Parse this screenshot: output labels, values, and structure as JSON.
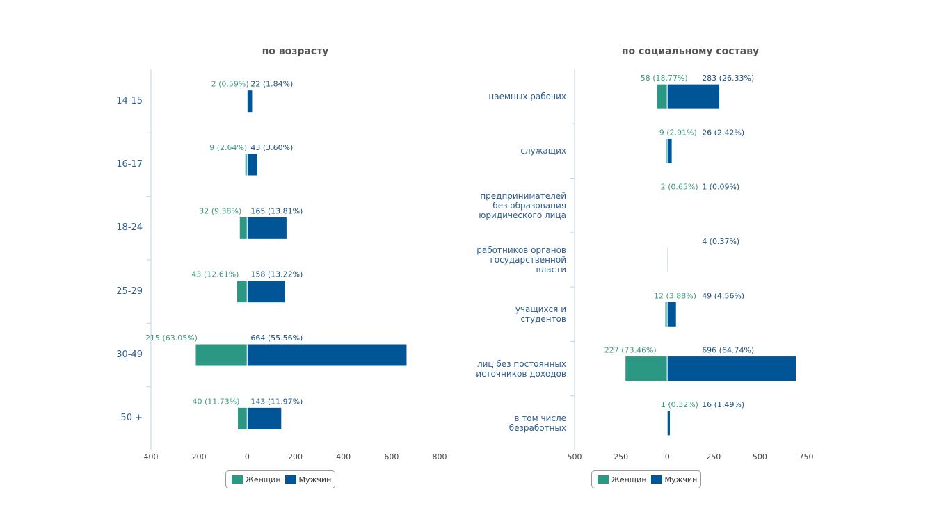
{
  "chart_data": [
    {
      "type": "butterfly-bar",
      "title": "по возрасту",
      "categories": [
        "14-15",
        "16-17",
        "18-24",
        "25-29",
        "30-49",
        "50 +"
      ],
      "series": [
        {
          "name": "Женщин",
          "color": "#2a9882",
          "values": [
            -2,
            -9,
            -32,
            -43,
            -215,
            -40
          ],
          "value_labels": [
            "2 (0.59%)",
            "9 (2.64%)",
            "32 (9.38%)",
            "43 (12.61%)",
            "215 (63.05%)",
            "40 (11.73%)"
          ]
        },
        {
          "name": "Мужчин",
          "color": "#005596",
          "values": [
            22,
            43,
            165,
            158,
            664,
            143
          ],
          "value_labels": [
            "22 (1.84%)",
            "43 (3.60%)",
            "165 (13.81%)",
            "158 (13.22%)",
            "664 (55.56%)",
            "143 (11.97%)"
          ]
        }
      ],
      "xlim": [
        -400,
        800
      ],
      "xticks": [
        {
          "value": -400,
          "label": "400"
        },
        {
          "value": -200,
          "label": "200"
        },
        0,
        200,
        400,
        600,
        800
      ],
      "legend": "bottom"
    },
    {
      "type": "butterfly-bar",
      "title": "по социальному составу",
      "categories": [
        "наемных рабочих",
        "служащих",
        "предпринимателей без образования юридического лица",
        "работников органов государственной власти",
        "учащихся и студентов",
        "лиц без постоянных источников доходов",
        "в том числе безработных"
      ],
      "series": [
        {
          "name": "Женщин",
          "color": "#2a9882",
          "values": [
            -58,
            -9,
            -2,
            null,
            -12,
            -227,
            -1
          ],
          "value_labels": [
            "58 (18.77%)",
            "9 (2.91%)",
            "2 (0.65%)",
            null,
            "12 (3.88%)",
            "227 (73.46%)",
            "1 (0.32%)"
          ]
        },
        {
          "name": "Мужчин",
          "color": "#005596",
          "values": [
            283,
            26,
            1,
            4,
            49,
            696,
            16
          ],
          "value_labels": [
            "283 (26.33%)",
            "26 (2.42%)",
            "1 (0.09%)",
            "4 (0.37%)",
            "49 (4.56%)",
            "696 (64.74%)",
            "16 (1.49%)"
          ]
        }
      ],
      "xlim": [
        -500,
        750
      ],
      "xticks": [
        {
          "value": -500,
          "label": "500"
        },
        {
          "value": -250,
          "label": "250"
        },
        0,
        250,
        500,
        750
      ],
      "legend": "bottom"
    }
  ]
}
